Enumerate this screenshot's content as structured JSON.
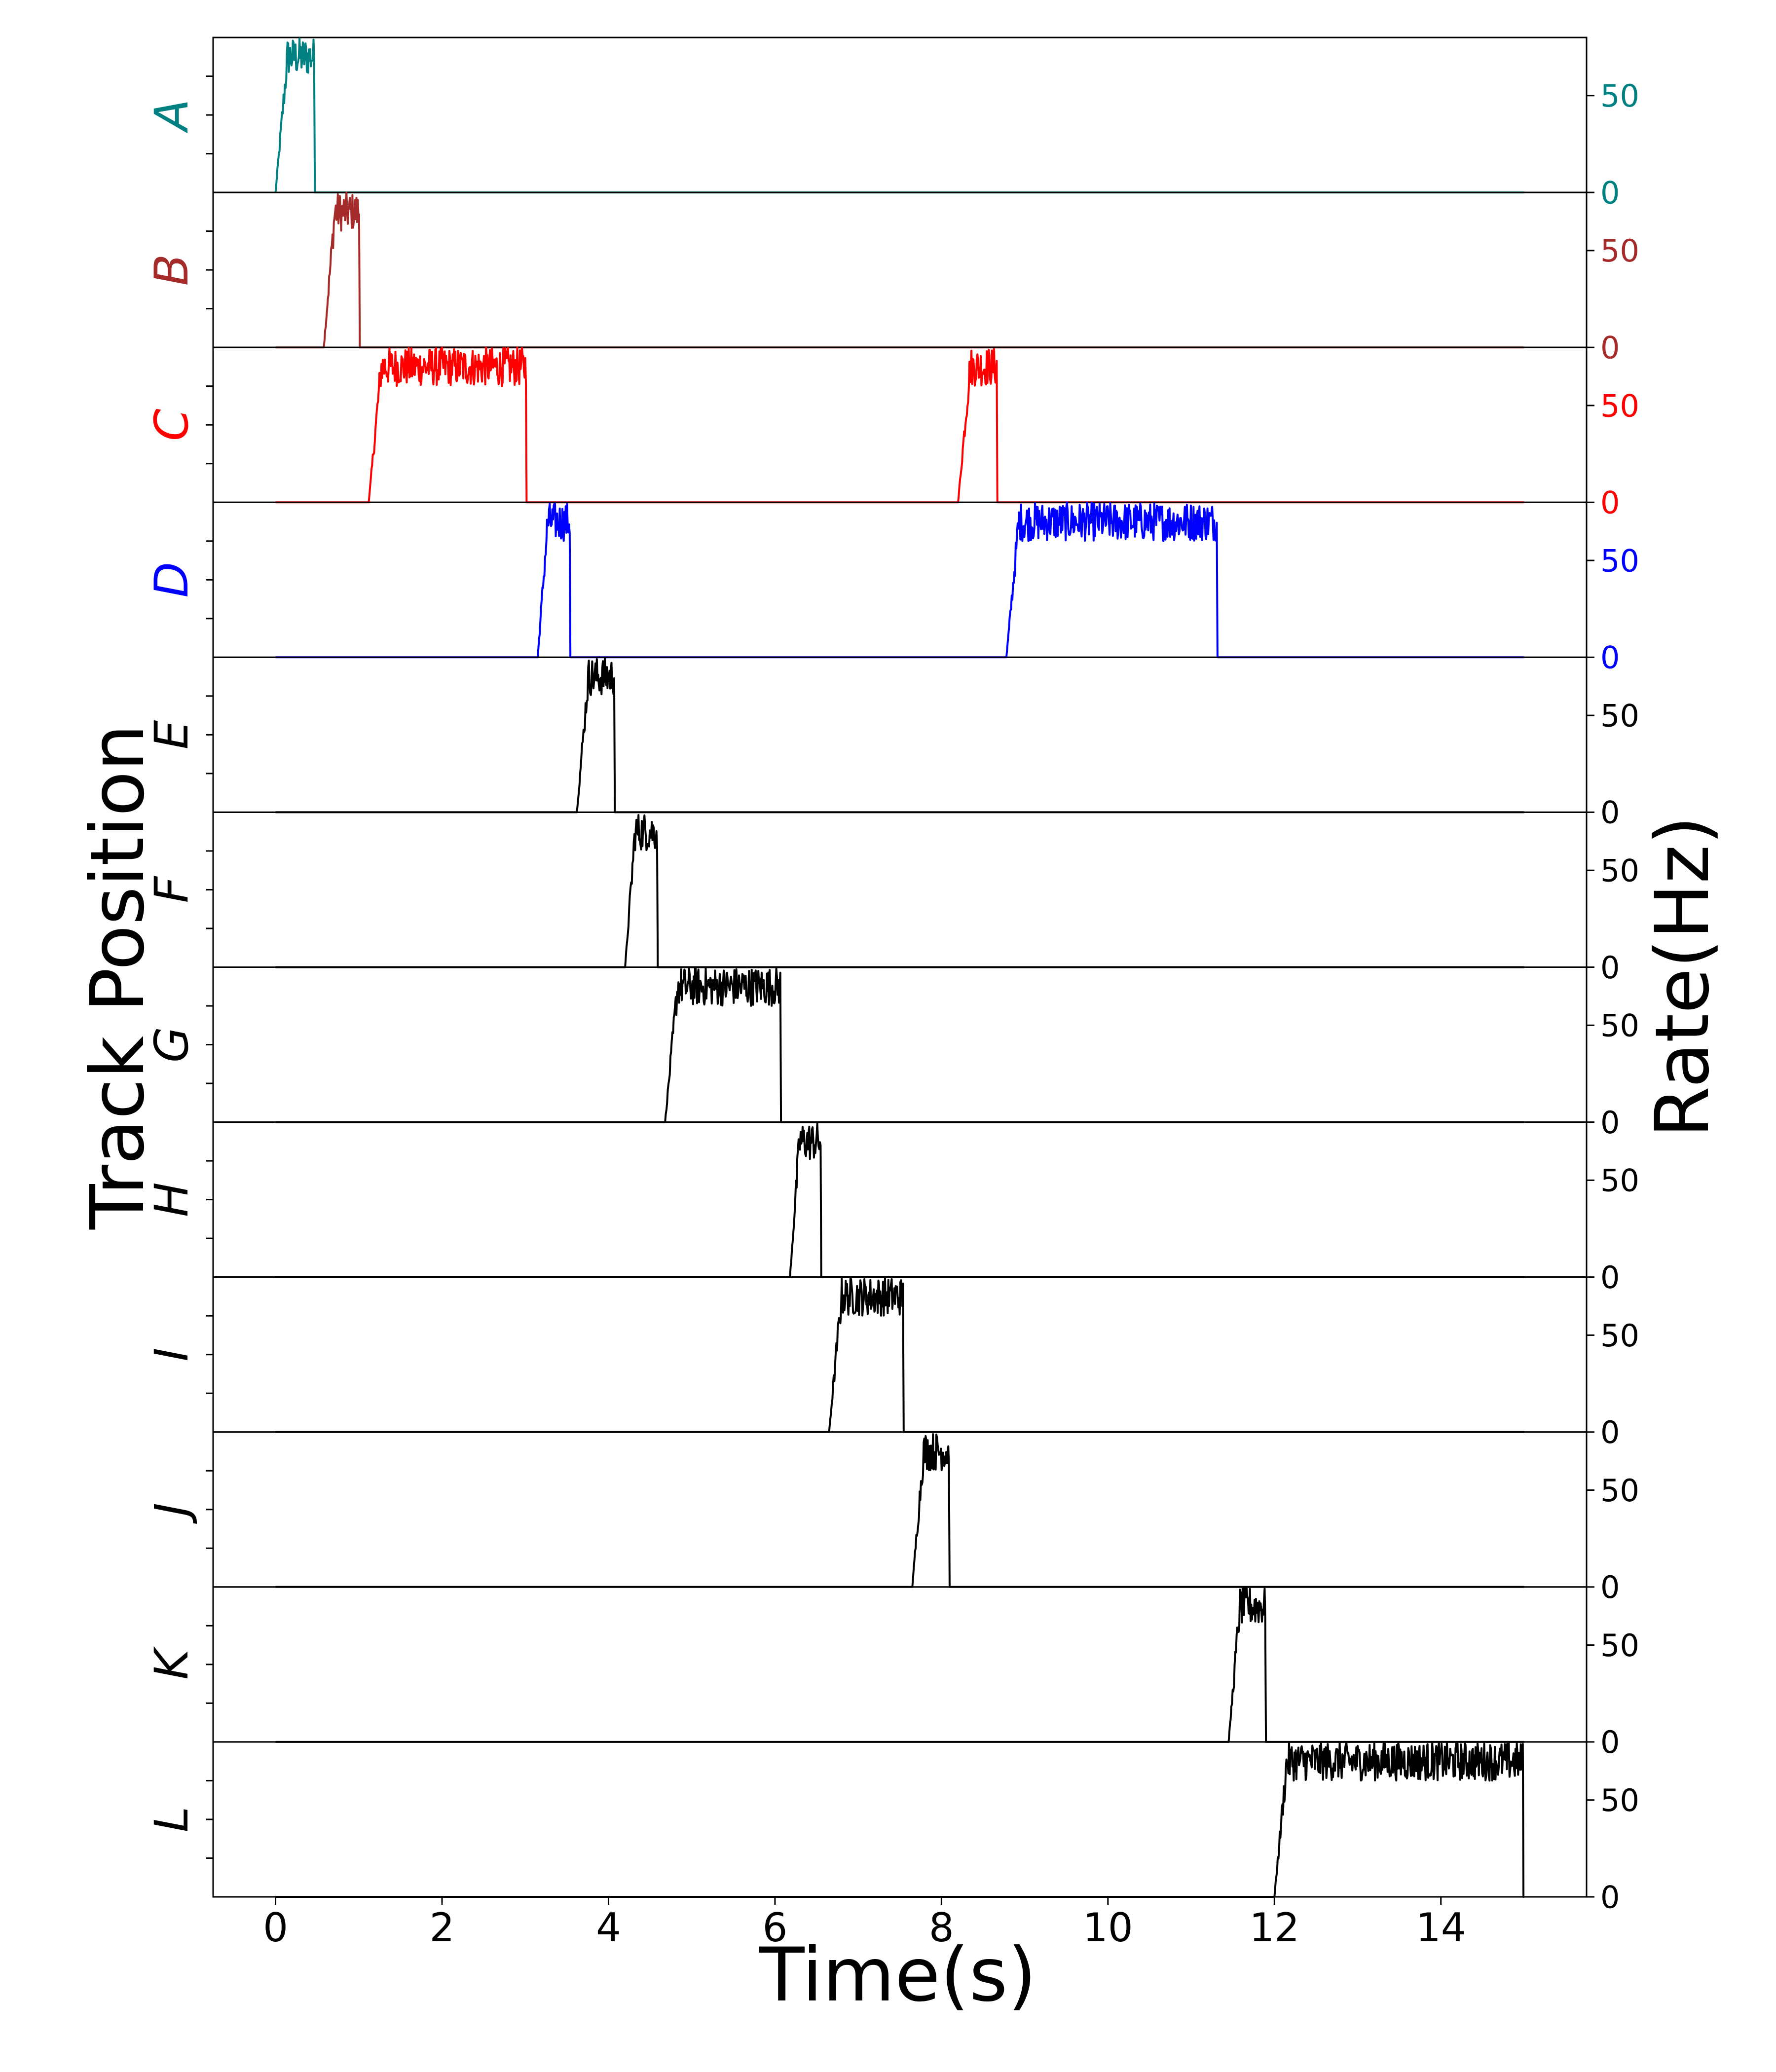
{
  "chart_data": {
    "type": "line",
    "xlabel": "Time(s)",
    "ylabel_left": "Track Position",
    "ylabel_right": "Rate(Hz)",
    "xlim": [
      -0.75,
      15.75
    ],
    "xticks": [
      0,
      2,
      4,
      6,
      8,
      10,
      12,
      14
    ],
    "ylim": [
      0,
      80
    ],
    "yticks_right": [
      0,
      50
    ],
    "rate_plateau_hz": 70,
    "rate_noise_hz": 10,
    "series": [
      {
        "name": "A",
        "color": "#008080",
        "episodes": [
          {
            "start": 0.0,
            "end": 0.48
          }
        ]
      },
      {
        "name": "B",
        "color": "#a52a2a",
        "episodes": [
          {
            "start": 0.58,
            "end": 1.02
          }
        ]
      },
      {
        "name": "C",
        "color": "#ff0000",
        "episodes": [
          {
            "start": 1.12,
            "end": 3.02
          },
          {
            "start": 8.2,
            "end": 8.68
          }
        ]
      },
      {
        "name": "D",
        "color": "#0000ff",
        "episodes": [
          {
            "start": 3.15,
            "end": 3.55
          },
          {
            "start": 8.78,
            "end": 11.32
          }
        ]
      },
      {
        "name": "E",
        "color": "#000000",
        "episodes": [
          {
            "start": 3.62,
            "end": 4.08
          }
        ]
      },
      {
        "name": "F",
        "color": "#000000",
        "episodes": [
          {
            "start": 4.2,
            "end": 4.6
          }
        ]
      },
      {
        "name": "G",
        "color": "#000000",
        "episodes": [
          {
            "start": 4.68,
            "end": 6.08
          }
        ]
      },
      {
        "name": "H",
        "color": "#000000",
        "episodes": [
          {
            "start": 6.18,
            "end": 6.56
          }
        ]
      },
      {
        "name": "I",
        "color": "#000000",
        "episodes": [
          {
            "start": 6.65,
            "end": 7.55
          }
        ]
      },
      {
        "name": "J",
        "color": "#000000",
        "episodes": [
          {
            "start": 7.65,
            "end": 8.1
          }
        ]
      },
      {
        "name": "K",
        "color": "#000000",
        "episodes": [
          {
            "start": 11.45,
            "end": 11.9
          }
        ]
      },
      {
        "name": "L",
        "color": "#000000",
        "episodes": [
          {
            "start": 12.0,
            "end": 15.0
          }
        ]
      }
    ]
  }
}
